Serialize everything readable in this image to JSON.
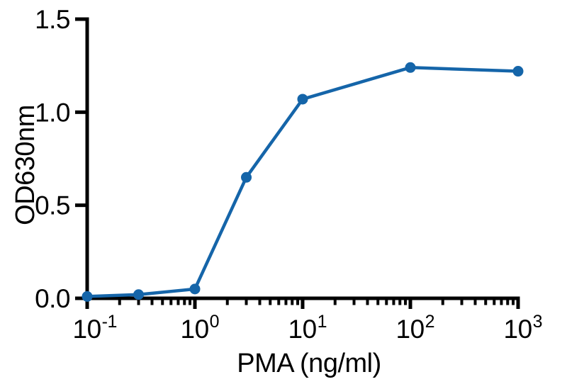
{
  "figure": {
    "background": "#ffffff"
  },
  "chart_data": {
    "type": "line",
    "title": "",
    "xlabel": "PMA (ng/ml)",
    "ylabel": "OD630nm",
    "x_scale": "log10",
    "x": [
      0.1,
      0.3,
      1,
      3,
      10,
      100,
      1000
    ],
    "y": [
      0.01,
      0.02,
      0.05,
      0.65,
      1.07,
      1.24,
      1.22
    ],
    "xlim": [
      0.1,
      1000
    ],
    "ylim": [
      0,
      1.5
    ],
    "y_ticks": [
      {
        "value": 0.0,
        "label": "0.0"
      },
      {
        "value": 0.5,
        "label": "0.5"
      },
      {
        "value": 1.0,
        "label": "1.0"
      },
      {
        "value": 1.5,
        "label": "1.5"
      }
    ],
    "x_ticks": [
      {
        "value": 0.1,
        "base": "10",
        "exponent": "-1"
      },
      {
        "value": 1,
        "base": "10",
        "exponent": "0"
      },
      {
        "value": 10,
        "base": "10",
        "exponent": "1"
      },
      {
        "value": 100,
        "base": "10",
        "exponent": "2"
      },
      {
        "value": 1000,
        "base": "10",
        "exponent": "3"
      }
    ],
    "x_minor_tick_multiples": [
      2,
      3,
      4,
      5,
      6,
      7,
      8,
      9
    ],
    "grid": false,
    "legend": null,
    "marker": "circle",
    "marker_color": "#1565a9",
    "line_color": "#1565a9",
    "axis_color": "#000000"
  }
}
